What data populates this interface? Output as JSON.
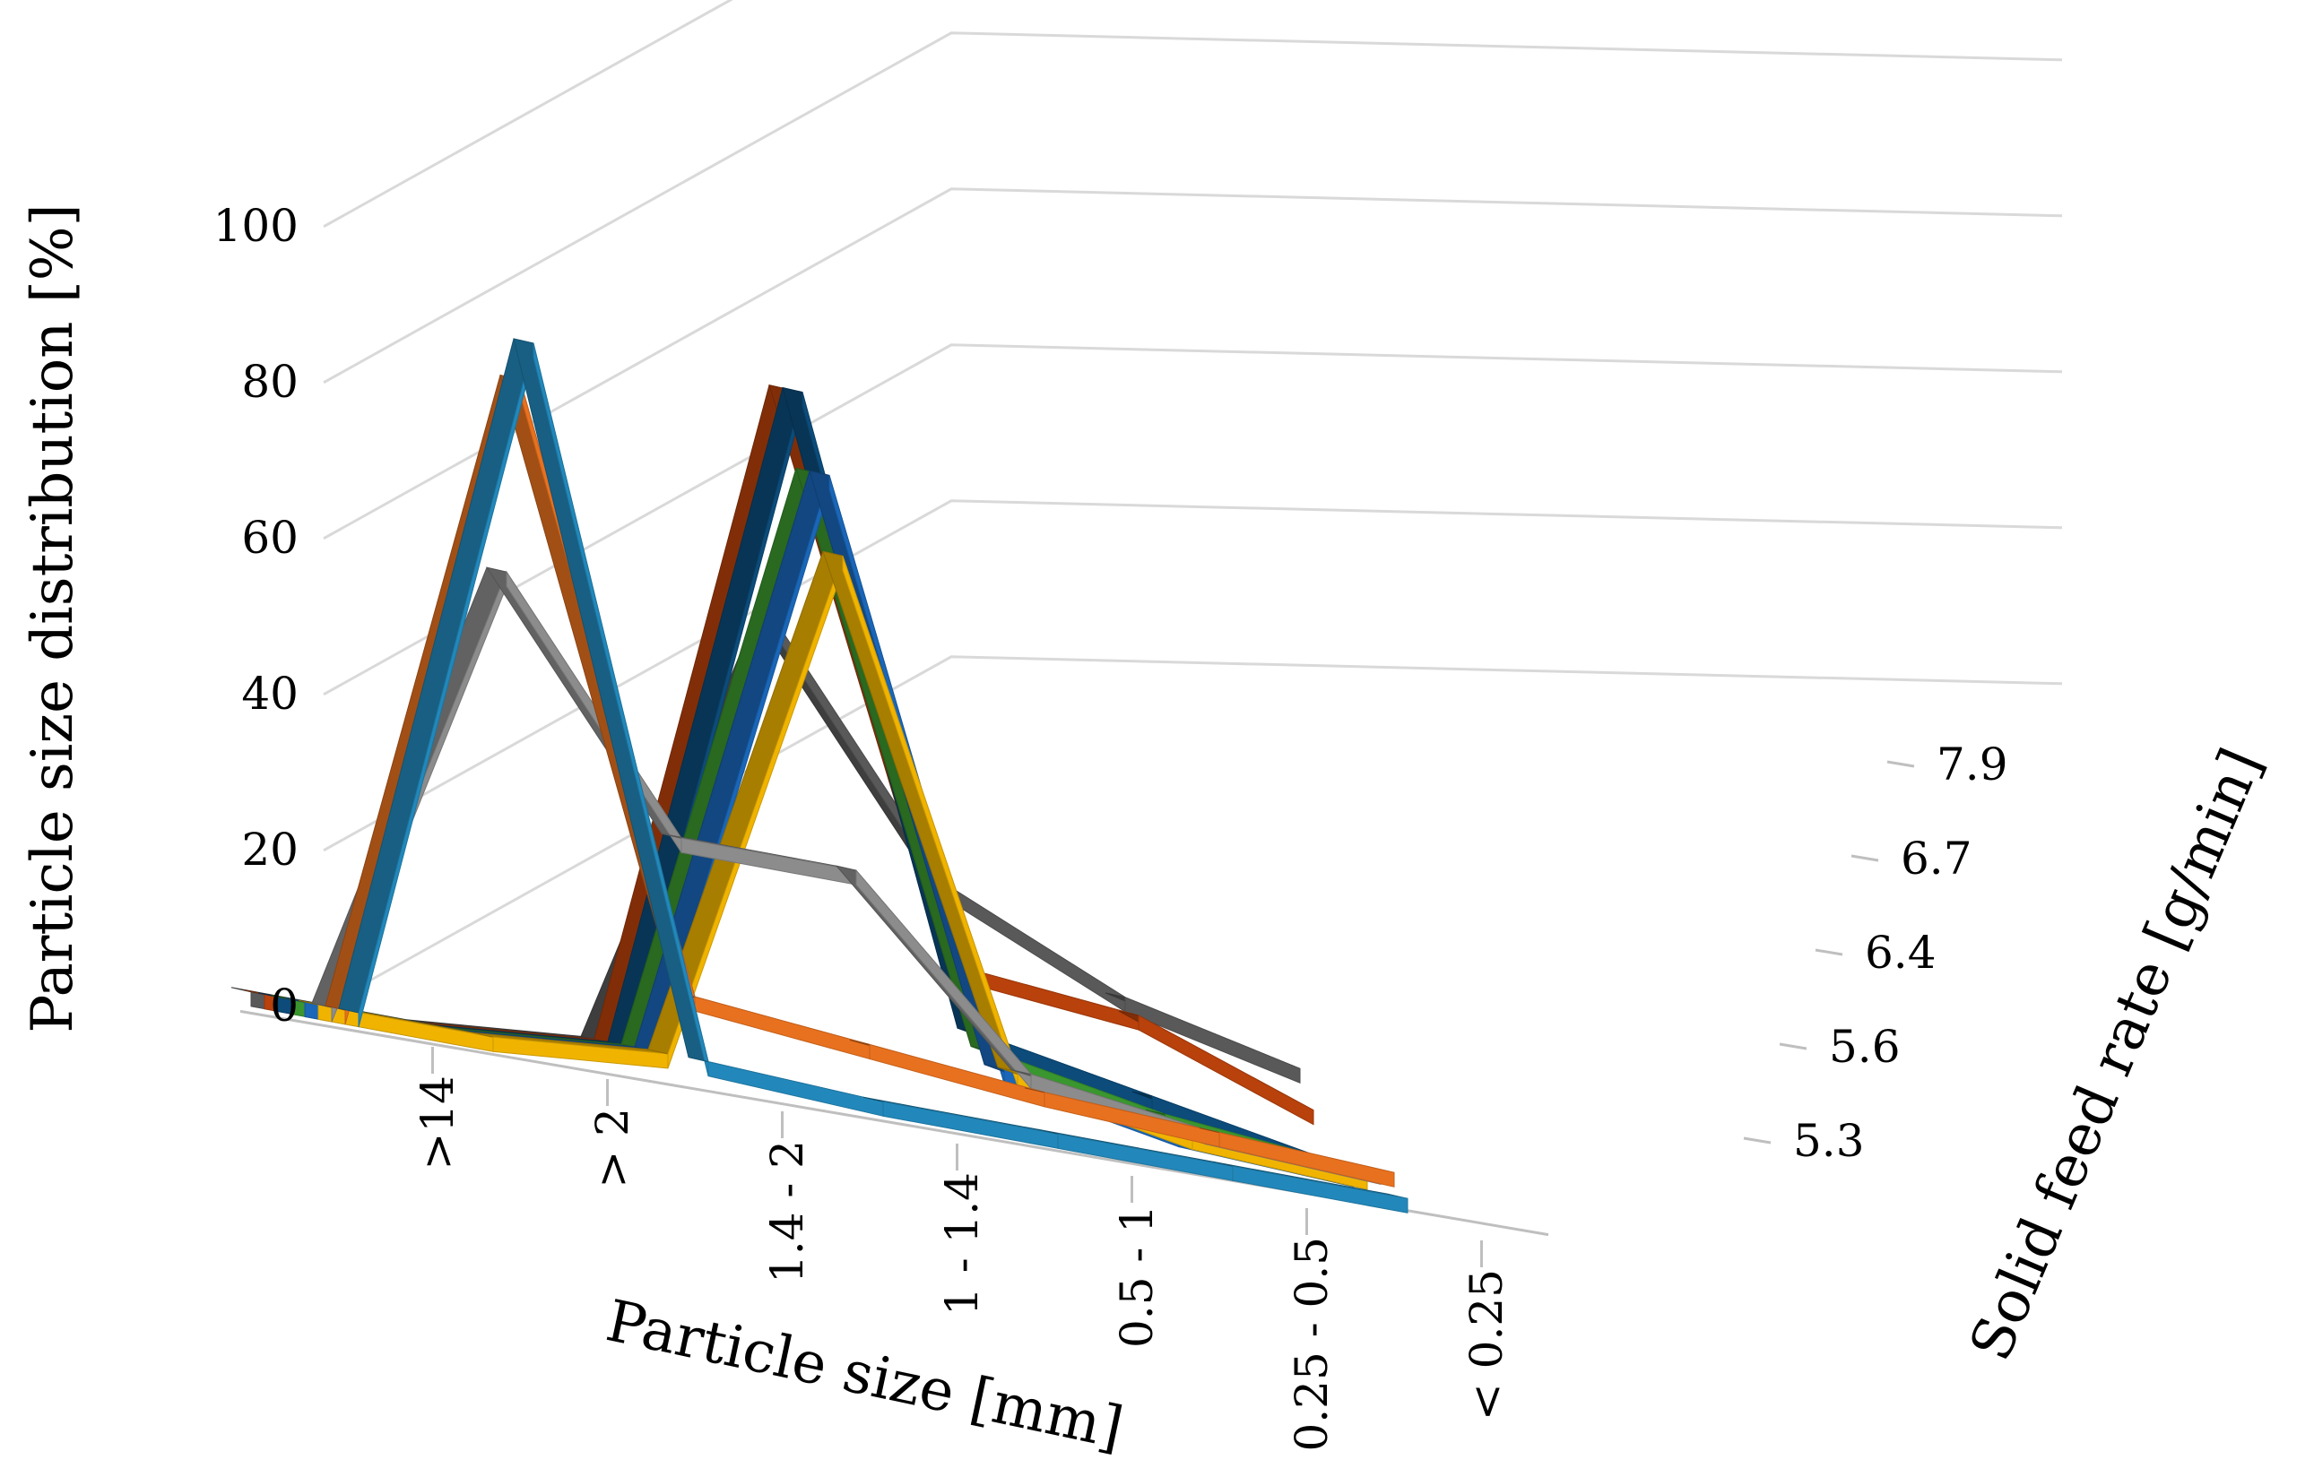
{
  "chart_data": {
    "type": "line",
    "title": "",
    "xlabel": "Particle size [mm]",
    "ylabel": "Particle size distribution [%]",
    "zlabel": "Solid feed rate [g/min]",
    "categories": [
      ">14",
      "> 2",
      "1.4 - 2",
      "1 - 1.4",
      "0.5 - 1",
      "0.25 - 0.5",
      "< 0.25"
    ],
    "y_ticks": [
      "0",
      "20",
      "40",
      "60",
      "80",
      "100"
    ],
    "ylim": [
      0,
      100
    ],
    "depth_ticks": [
      "5.3",
      "5.6",
      "6.4",
      "6.7",
      "7.9"
    ],
    "grid": true,
    "series": [
      {
        "depth": "5.3",
        "color": "#2288bb",
        "values": [
          0,
          90,
          2,
          1,
          1,
          1,
          1
        ]
      },
      {
        "depth": "5.3",
        "color": "#e8711f",
        "values": [
          0,
          85,
          10,
          8,
          6,
          5,
          4
        ]
      },
      {
        "depth": "5.6",
        "color": "#8c8c8c",
        "values": [
          0,
          60,
          30,
          30,
          8,
          5,
          4
        ]
      },
      {
        "depth": "5.6",
        "color": "#f0b400",
        "values": [
          0,
          0,
          2,
          70,
          8,
          4,
          3
        ]
      },
      {
        "depth": "6.4",
        "color": "#1a66b8",
        "values": [
          0,
          0,
          2,
          80,
          8,
          4,
          3
        ]
      },
      {
        "depth": "6.4",
        "color": "#3a962e",
        "values": [
          0,
          0,
          2,
          80,
          10,
          6,
          4
        ]
      },
      {
        "depth": "6.7",
        "color": "#0c4b7a",
        "values": [
          0,
          0,
          2,
          90,
          12,
          8,
          4
        ]
      },
      {
        "depth": "7.9",
        "color": "#b8410c",
        "values": [
          0,
          0,
          2,
          90,
          20,
          18,
          10
        ]
      },
      {
        "depth": "7.9",
        "color": "#595959",
        "values": [
          0,
          0,
          2,
          60,
          30,
          20,
          15
        ]
      }
    ]
  }
}
